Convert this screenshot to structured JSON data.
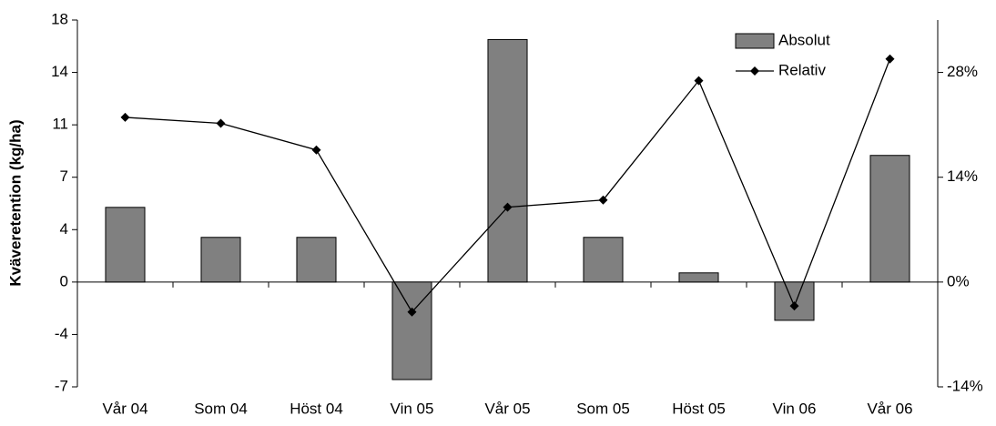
{
  "chart_data": {
    "type": "bar",
    "y_label": "Kväveretention (kg/ha)",
    "categories": [
      "Vår 04",
      "Som 04",
      "Höst 04",
      "Vin 05",
      "Vår 05",
      "Som 05",
      "Höst 05",
      "Vin 06",
      "Vår 06"
    ],
    "series": [
      {
        "name": "Absolut",
        "type": "bar",
        "color": "#808080",
        "values": [
          5.13,
          3.07,
          3.07,
          -6.7,
          16.66,
          3.07,
          0.63,
          -2.63,
          8.7
        ]
      },
      {
        "name": "Relativ",
        "type": "line",
        "axis": "y2",
        "color": "#000000",
        "values": [
          22.0,
          21.2,
          17.65,
          -4.0,
          10.0,
          10.96,
          26.9,
          -3.2,
          29.8
        ]
      }
    ],
    "ylim": [
      -7.2,
      18
    ],
    "yticks": [
      {
        "value": -7.2,
        "label": "-7"
      },
      {
        "value": -3.6,
        "label": "-4"
      },
      0,
      {
        "value": 3.6,
        "label": "4"
      },
      {
        "value": 7.2,
        "label": "7"
      },
      {
        "value": 10.8,
        "label": "11"
      },
      {
        "value": 14.4,
        "label": "14"
      },
      18
    ],
    "y2lim": [
      -14,
      35
    ],
    "y2ticks": [
      {
        "value": -14,
        "label": "-14%"
      },
      {
        "value": 0,
        "label": "0%"
      },
      {
        "value": 14,
        "label": "14%"
      },
      {
        "value": 28,
        "label": "28%"
      }
    ],
    "grid": false,
    "legend": "top-right"
  }
}
